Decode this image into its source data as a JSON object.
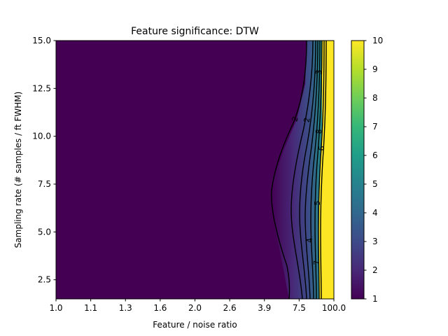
{
  "chart_data": {
    "type": "heatmap",
    "title": "Feature significance: DTW",
    "xlabel": "Feature / noise ratio",
    "ylabel": "Sampling rate (# samples / ft FWHM)",
    "x_ticks": [
      "1.0",
      "1.1",
      "1.3",
      "1.6",
      "2.0",
      "2.6",
      "3.9",
      "7.5",
      "100.0"
    ],
    "y_ticks": [
      "2.5",
      "5.0",
      "7.5",
      "10.0",
      "12.5",
      "15.0"
    ],
    "ylim": [
      1.5,
      15
    ],
    "colorbar": {
      "range": [
        1,
        10
      ],
      "ticks": [
        "1",
        "2",
        "3",
        "4",
        "5",
        "6",
        "7",
        "8",
        "9",
        "10"
      ],
      "colormap": "viridis"
    },
    "contour_levels": [
      2,
      3,
      4,
      5,
      6,
      7,
      8,
      9
    ],
    "contour_labels": [
      "2",
      "2",
      "3",
      "4",
      "5",
      "6",
      "7",
      "8"
    ],
    "background_value": 1,
    "saturated_value": 10
  }
}
